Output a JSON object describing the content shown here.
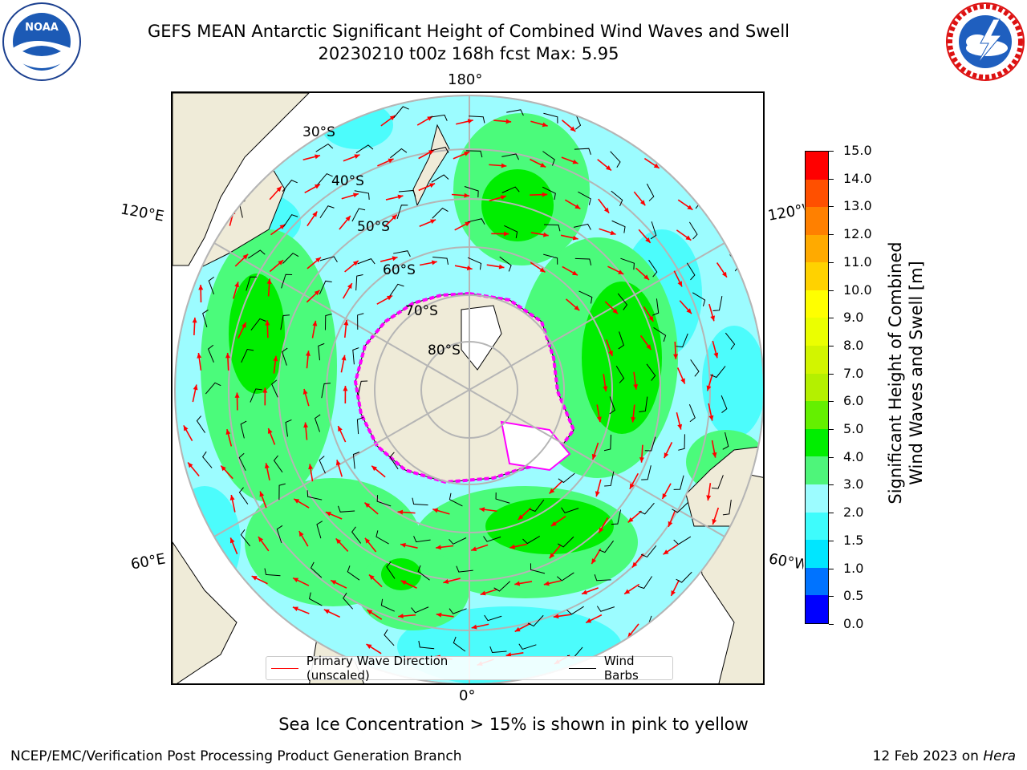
{
  "title_line1": "GEFS MEAN Antarctic Significant Height of Combined Wind Waves and Swell",
  "title_line2": "20230210 t00z 168h fcst   Max: 5.95",
  "logos": {
    "left": "NOAA",
    "left_ring_text": "NATIONAL OCEANIC AND ATMOSPHERIC ADMINISTRATION · U.S. DEPARTMENT OF COMMERCE",
    "right_ring_text": "NATIONAL WEATHER SERVICE"
  },
  "map": {
    "longitude_labels": {
      "top": "180°",
      "bottom": "0°",
      "upper_left": "120°E",
      "lower_left": "60°E",
      "upper_right": "120°W",
      "lower_right": "60°W"
    },
    "latitude_labels": [
      "30°S",
      "40°S",
      "50°S",
      "60°S",
      "70°S",
      "80°S"
    ],
    "colors": {
      "land": "#efebd8",
      "sea_cyan": "#9cfcff",
      "cyan_medium": "#4cfcfc",
      "green_light": "#4bfb7b",
      "green": "#00f000",
      "ice": "#ff00ff",
      "wave_arrow": "#ff0000",
      "wind_barb": "#000000",
      "graticule": "#b5b5b5"
    }
  },
  "legend": {
    "wave_label": "Primary Wave Direction (unscaled)",
    "wind_label": "Wind Barbs",
    "wave_color": "#ff0000",
    "wind_color": "#000000"
  },
  "colorbar": {
    "label_line1": "Significant Height of Combined",
    "label_line2": "Wind Waves and Swell [m]",
    "ticks": [
      "0.0",
      "0.5",
      "1.0",
      "1.5",
      "2.0",
      "3.0",
      "4.0",
      "5.0",
      "6.0",
      "7.0",
      "8.0",
      "9.0",
      "10.0",
      "11.0",
      "12.0",
      "13.0",
      "14.0",
      "15.0"
    ],
    "colors": [
      "#0000ff",
      "#0073ff",
      "#00e6ff",
      "#3efcfc",
      "#9cfcff",
      "#4ef57a",
      "#00ee00",
      "#64f000",
      "#b4f000",
      "#d2f500",
      "#ebff00",
      "#ffff00",
      "#ffd200",
      "#ffaa00",
      "#ff8000",
      "#ff5000",
      "#ff0000"
    ]
  },
  "note": "Sea Ice Concentration > 15% is shown in pink to yellow",
  "footer_left": "NCEP/EMC/Verification Post Processing Product Generation Branch",
  "footer_date": "12 Feb 2023 on ",
  "footer_host": "Hera"
}
